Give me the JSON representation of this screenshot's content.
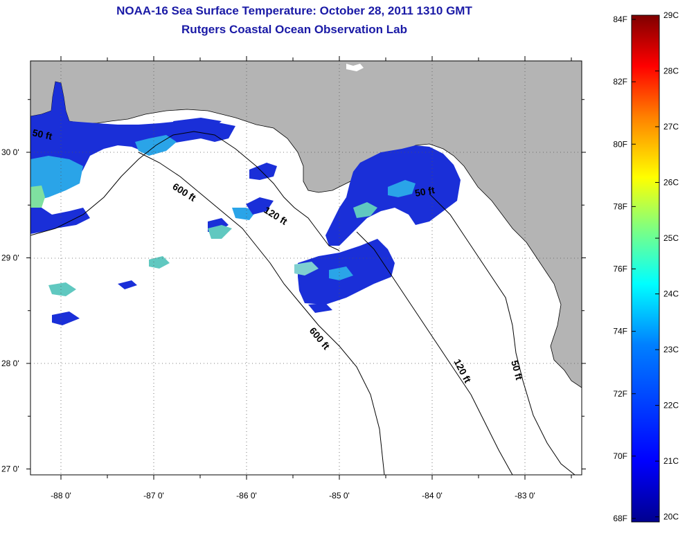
{
  "title": {
    "line1": "NOAA-16 Sea Surface Temperature:  October 28, 2011 1310 GMT",
    "line2": "Rutgers Coastal Ocean Observation Lab"
  },
  "map": {
    "lat_ticks": [
      {
        "label": "30 0'",
        "value": 30
      },
      {
        "label": "29 0'",
        "value": 29
      },
      {
        "label": "28 0'",
        "value": 28
      },
      {
        "label": "27 0'",
        "value": 27
      }
    ],
    "lon_ticks": [
      {
        "label": "-88 0'",
        "value": -88
      },
      {
        "label": "-87 0'",
        "value": -87
      },
      {
        "label": "-86 0'",
        "value": -86
      },
      {
        "label": "-85 0'",
        "value": -85
      },
      {
        "label": "-84 0'",
        "value": -84
      },
      {
        "label": "-83 0'",
        "value": -83
      }
    ],
    "contour_labels": [
      {
        "text": "50 ft",
        "id": "west-50"
      },
      {
        "text": "600 ft",
        "id": "mid-600"
      },
      {
        "text": "120 ft",
        "id": "mid-120"
      },
      {
        "text": "50 ft",
        "id": "bay-50"
      },
      {
        "text": "600 ft",
        "id": "south-600"
      },
      {
        "text": "120 ft",
        "id": "south-120"
      },
      {
        "text": "50 ft",
        "id": "south-50"
      }
    ],
    "colors": {
      "land": "#b4b4b4",
      "water": "#ffffff",
      "grid": "#555555"
    }
  },
  "colorbar": {
    "fahrenheit_labels": [
      "84F",
      "82F",
      "80F",
      "78F",
      "76F",
      "74F",
      "72F",
      "70F",
      "68F"
    ],
    "celsius_labels": [
      "29C",
      "28C",
      "27C",
      "26C",
      "25C",
      "24C",
      "23C",
      "22C",
      "21C",
      "20C"
    ],
    "colors": [
      "#7f0000",
      "#ff0000",
      "#ff8000",
      "#ffff00",
      "#80ff80",
      "#00ffff",
      "#0080ff",
      "#0000ff",
      "#00008f"
    ]
  }
}
